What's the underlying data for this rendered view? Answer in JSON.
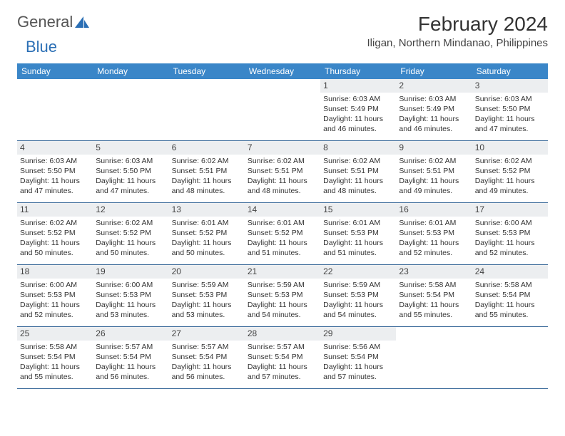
{
  "brand": {
    "part1": "General",
    "part2": "Blue",
    "text_color": "#555555",
    "accent_color": "#2b6fb5"
  },
  "title": "February 2024",
  "subtitle": "Iligan, Northern Mindanao, Philippines",
  "header_bg": "#3a86c8",
  "daynum_bg": "#eceef0",
  "week_border": "#3a6a9a",
  "dow": [
    "Sunday",
    "Monday",
    "Tuesday",
    "Wednesday",
    "Thursday",
    "Friday",
    "Saturday"
  ],
  "weeks": [
    [
      {
        "day": ""
      },
      {
        "day": ""
      },
      {
        "day": ""
      },
      {
        "day": ""
      },
      {
        "day": "1",
        "sunrise": "Sunrise: 6:03 AM",
        "sunset": "Sunset: 5:49 PM",
        "daylight1": "Daylight: 11 hours",
        "daylight2": "and 46 minutes."
      },
      {
        "day": "2",
        "sunrise": "Sunrise: 6:03 AM",
        "sunset": "Sunset: 5:49 PM",
        "daylight1": "Daylight: 11 hours",
        "daylight2": "and 46 minutes."
      },
      {
        "day": "3",
        "sunrise": "Sunrise: 6:03 AM",
        "sunset": "Sunset: 5:50 PM",
        "daylight1": "Daylight: 11 hours",
        "daylight2": "and 47 minutes."
      }
    ],
    [
      {
        "day": "4",
        "sunrise": "Sunrise: 6:03 AM",
        "sunset": "Sunset: 5:50 PM",
        "daylight1": "Daylight: 11 hours",
        "daylight2": "and 47 minutes."
      },
      {
        "day": "5",
        "sunrise": "Sunrise: 6:03 AM",
        "sunset": "Sunset: 5:50 PM",
        "daylight1": "Daylight: 11 hours",
        "daylight2": "and 47 minutes."
      },
      {
        "day": "6",
        "sunrise": "Sunrise: 6:02 AM",
        "sunset": "Sunset: 5:51 PM",
        "daylight1": "Daylight: 11 hours",
        "daylight2": "and 48 minutes."
      },
      {
        "day": "7",
        "sunrise": "Sunrise: 6:02 AM",
        "sunset": "Sunset: 5:51 PM",
        "daylight1": "Daylight: 11 hours",
        "daylight2": "and 48 minutes."
      },
      {
        "day": "8",
        "sunrise": "Sunrise: 6:02 AM",
        "sunset": "Sunset: 5:51 PM",
        "daylight1": "Daylight: 11 hours",
        "daylight2": "and 48 minutes."
      },
      {
        "day": "9",
        "sunrise": "Sunrise: 6:02 AM",
        "sunset": "Sunset: 5:51 PM",
        "daylight1": "Daylight: 11 hours",
        "daylight2": "and 49 minutes."
      },
      {
        "day": "10",
        "sunrise": "Sunrise: 6:02 AM",
        "sunset": "Sunset: 5:52 PM",
        "daylight1": "Daylight: 11 hours",
        "daylight2": "and 49 minutes."
      }
    ],
    [
      {
        "day": "11",
        "sunrise": "Sunrise: 6:02 AM",
        "sunset": "Sunset: 5:52 PM",
        "daylight1": "Daylight: 11 hours",
        "daylight2": "and 50 minutes."
      },
      {
        "day": "12",
        "sunrise": "Sunrise: 6:02 AM",
        "sunset": "Sunset: 5:52 PM",
        "daylight1": "Daylight: 11 hours",
        "daylight2": "and 50 minutes."
      },
      {
        "day": "13",
        "sunrise": "Sunrise: 6:01 AM",
        "sunset": "Sunset: 5:52 PM",
        "daylight1": "Daylight: 11 hours",
        "daylight2": "and 50 minutes."
      },
      {
        "day": "14",
        "sunrise": "Sunrise: 6:01 AM",
        "sunset": "Sunset: 5:52 PM",
        "daylight1": "Daylight: 11 hours",
        "daylight2": "and 51 minutes."
      },
      {
        "day": "15",
        "sunrise": "Sunrise: 6:01 AM",
        "sunset": "Sunset: 5:53 PM",
        "daylight1": "Daylight: 11 hours",
        "daylight2": "and 51 minutes."
      },
      {
        "day": "16",
        "sunrise": "Sunrise: 6:01 AM",
        "sunset": "Sunset: 5:53 PM",
        "daylight1": "Daylight: 11 hours",
        "daylight2": "and 52 minutes."
      },
      {
        "day": "17",
        "sunrise": "Sunrise: 6:00 AM",
        "sunset": "Sunset: 5:53 PM",
        "daylight1": "Daylight: 11 hours",
        "daylight2": "and 52 minutes."
      }
    ],
    [
      {
        "day": "18",
        "sunrise": "Sunrise: 6:00 AM",
        "sunset": "Sunset: 5:53 PM",
        "daylight1": "Daylight: 11 hours",
        "daylight2": "and 52 minutes."
      },
      {
        "day": "19",
        "sunrise": "Sunrise: 6:00 AM",
        "sunset": "Sunset: 5:53 PM",
        "daylight1": "Daylight: 11 hours",
        "daylight2": "and 53 minutes."
      },
      {
        "day": "20",
        "sunrise": "Sunrise: 5:59 AM",
        "sunset": "Sunset: 5:53 PM",
        "daylight1": "Daylight: 11 hours",
        "daylight2": "and 53 minutes."
      },
      {
        "day": "21",
        "sunrise": "Sunrise: 5:59 AM",
        "sunset": "Sunset: 5:53 PM",
        "daylight1": "Daylight: 11 hours",
        "daylight2": "and 54 minutes."
      },
      {
        "day": "22",
        "sunrise": "Sunrise: 5:59 AM",
        "sunset": "Sunset: 5:53 PM",
        "daylight1": "Daylight: 11 hours",
        "daylight2": "and 54 minutes."
      },
      {
        "day": "23",
        "sunrise": "Sunrise: 5:58 AM",
        "sunset": "Sunset: 5:54 PM",
        "daylight1": "Daylight: 11 hours",
        "daylight2": "and 55 minutes."
      },
      {
        "day": "24",
        "sunrise": "Sunrise: 5:58 AM",
        "sunset": "Sunset: 5:54 PM",
        "daylight1": "Daylight: 11 hours",
        "daylight2": "and 55 minutes."
      }
    ],
    [
      {
        "day": "25",
        "sunrise": "Sunrise: 5:58 AM",
        "sunset": "Sunset: 5:54 PM",
        "daylight1": "Daylight: 11 hours",
        "daylight2": "and 55 minutes."
      },
      {
        "day": "26",
        "sunrise": "Sunrise: 5:57 AM",
        "sunset": "Sunset: 5:54 PM",
        "daylight1": "Daylight: 11 hours",
        "daylight2": "and 56 minutes."
      },
      {
        "day": "27",
        "sunrise": "Sunrise: 5:57 AM",
        "sunset": "Sunset: 5:54 PM",
        "daylight1": "Daylight: 11 hours",
        "daylight2": "and 56 minutes."
      },
      {
        "day": "28",
        "sunrise": "Sunrise: 5:57 AM",
        "sunset": "Sunset: 5:54 PM",
        "daylight1": "Daylight: 11 hours",
        "daylight2": "and 57 minutes."
      },
      {
        "day": "29",
        "sunrise": "Sunrise: 5:56 AM",
        "sunset": "Sunset: 5:54 PM",
        "daylight1": "Daylight: 11 hours",
        "daylight2": "and 57 minutes."
      },
      {
        "day": ""
      },
      {
        "day": ""
      }
    ]
  ]
}
